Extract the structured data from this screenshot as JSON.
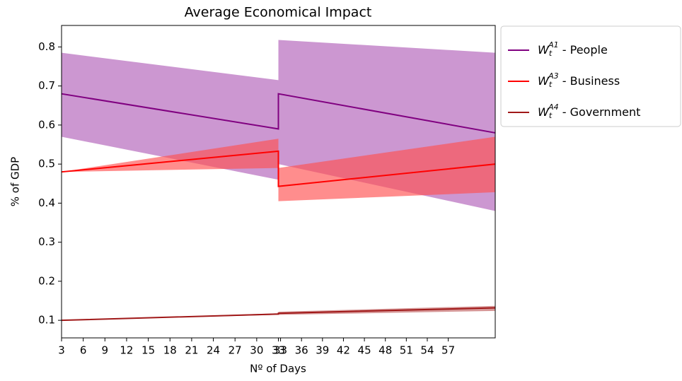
{
  "chart_data": {
    "type": "line",
    "title": "Average Economical Impact",
    "x_label": "Nº of Days",
    "y_label": "% of GDP",
    "x": [
      0,
      30,
      30,
      60
    ],
    "xlim": [
      0,
      60
    ],
    "ylim": [
      0.055,
      0.855
    ],
    "xticks": [
      {
        "value": 0,
        "label": "3"
      },
      {
        "value": 3,
        "label": "6"
      },
      {
        "value": 6,
        "label": "9"
      },
      {
        "value": 9,
        "label": "12"
      },
      {
        "value": 12,
        "label": "15"
      },
      {
        "value": 15,
        "label": "18"
      },
      {
        "value": 18,
        "label": "21"
      },
      {
        "value": 21,
        "label": "24"
      },
      {
        "value": 24,
        "label": "27"
      },
      {
        "value": 27,
        "label": "30"
      },
      {
        "value": 30,
        "label": "33"
      },
      {
        "value": 30.3,
        "label": "33"
      },
      {
        "value": 33.2,
        "label": "36"
      },
      {
        "value": 36.1,
        "label": "39"
      },
      {
        "value": 39,
        "label": "42"
      },
      {
        "value": 41.9,
        "label": "45"
      },
      {
        "value": 44.8,
        "label": "48"
      },
      {
        "value": 47.7,
        "label": "51"
      },
      {
        "value": 50.6,
        "label": "54"
      },
      {
        "value": 53.5,
        "label": "57"
      }
    ],
    "yticks": [
      0.1,
      0.2,
      0.3,
      0.4,
      0.5,
      0.6,
      0.7,
      0.8
    ],
    "legend": "outside-right",
    "series": [
      {
        "symbol": {
          "base": "W",
          "sub": "t",
          "sup": "A1"
        },
        "name": " - People",
        "color": "#800080",
        "band_color": "#b060b8",
        "values": [
          0.68,
          0.59,
          0.68,
          0.58
        ],
        "upper": [
          0.785,
          0.715,
          0.818,
          0.785
        ],
        "lower": [
          0.57,
          0.46,
          0.5,
          0.38
        ]
      },
      {
        "symbol": {
          "base": "W",
          "sub": "t",
          "sup": "A3"
        },
        "name": " - Business",
        "color": "#ff0000",
        "band_color": "#ff5050",
        "values": [
          0.48,
          0.533,
          0.443,
          0.5
        ],
        "upper": [
          0.48,
          0.565,
          0.49,
          0.57
        ],
        "lower": [
          0.48,
          0.49,
          0.405,
          0.428
        ]
      },
      {
        "symbol": {
          "base": "W",
          "sub": "t",
          "sup": "A4"
        },
        "name": " - Government",
        "color": "#a01818",
        "band_color": "#c06060",
        "values": [
          0.1,
          0.116,
          0.118,
          0.132
        ],
        "upper": [
          0.1,
          0.118,
          0.122,
          0.137
        ],
        "lower": [
          0.1,
          0.114,
          0.114,
          0.124
        ]
      }
    ]
  }
}
